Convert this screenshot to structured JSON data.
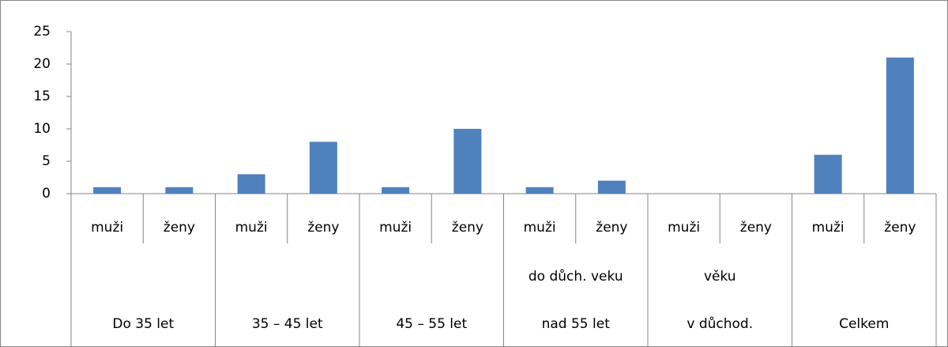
{
  "chart_data": {
    "type": "bar",
    "categories": [
      "muži",
      "ženy",
      "muži",
      "ženy",
      "muži",
      "ženy",
      "muži",
      "ženy",
      "muži",
      "ženy",
      "muži",
      "ženy"
    ],
    "groups": [
      [
        "Do 35 let"
      ],
      [
        "35 – 45 let"
      ],
      [
        "45 – 55 let"
      ],
      [
        "do důch. veku",
        "nad 55 let"
      ],
      [
        "věku",
        "v důchod."
      ],
      [
        "Celkem"
      ]
    ],
    "values": [
      1,
      1,
      3,
      8,
      1,
      10,
      1,
      2,
      0,
      0,
      6,
      21
    ],
    "color": "#4f81bd",
    "ylim": [
      0,
      25
    ],
    "yticks": [
      0,
      5,
      10,
      15,
      20,
      25
    ],
    "grid": false
  }
}
